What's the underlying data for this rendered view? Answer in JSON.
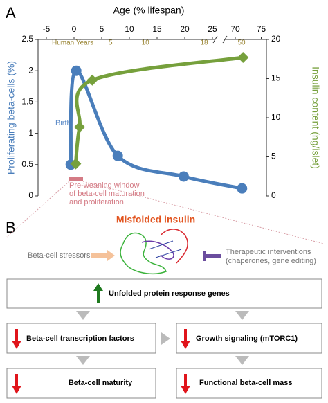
{
  "panel_labels": [
    "A",
    "B"
  ],
  "chart_data": {
    "type": "line",
    "xlabel": "Age (% lifespan)",
    "ylabel": "Proliferating beta-cells (%)",
    "y2label": "Insulin content (ng/islet)",
    "xlim": [
      -6,
      76
    ],
    "xbreak": [
      25.5,
      68
    ],
    "xticks": [
      -5,
      0,
      5,
      10,
      15,
      20,
      25,
      70,
      75
    ],
    "ylim": [
      0,
      2.5
    ],
    "yticks": [
      0,
      0.5,
      1,
      1.5,
      2,
      2.5
    ],
    "y2lim": [
      0,
      20
    ],
    "y2ticks": [
      0,
      5,
      10,
      15,
      20
    ],
    "human_years": {
      "label": "Human Years",
      "ticks": [
        {
          "value": 6.6,
          "label": "5"
        },
        {
          "value": 12.9,
          "label": "10"
        },
        {
          "value": 23.5,
          "label": "18"
        },
        {
          "value": 71.2,
          "label": "50"
        }
      ]
    },
    "series": [
      {
        "name": "Proliferating beta-cells",
        "color": "#4a7ebb",
        "marker": "circle",
        "x": [
          -0.6,
          0.4,
          7.9,
          19.8,
          71.3
        ],
        "values": [
          0.5,
          2.0,
          0.64,
          0.31,
          0.12
        ]
      },
      {
        "name": "Insulin content",
        "color": "#76a03c",
        "marker": "diamond",
        "axis": "y2",
        "x": [
          0.3,
          1.0,
          3.3,
          71.5
        ],
        "values": [
          4.1,
          8.8,
          14.8,
          17.7
        ]
      }
    ],
    "annotations": {
      "birth": "Birth",
      "pre_weaning": [
        "Pre-weaning window",
        "of beta-cell maturation",
        "and proliferation"
      ]
    }
  },
  "diagram": {
    "title": "Misfolded insulin",
    "stressors": "Beta-cell stressors",
    "therapeutics": [
      "Therapeutic interventions",
      "(chaperones, gene editing)"
    ],
    "boxes": [
      "Unfolded protein response genes",
      "Beta-cell transcription factors",
      "Growth signaling (mTORC1)",
      "Beta-cell maturity",
      "Functional beta-cell mass"
    ]
  }
}
